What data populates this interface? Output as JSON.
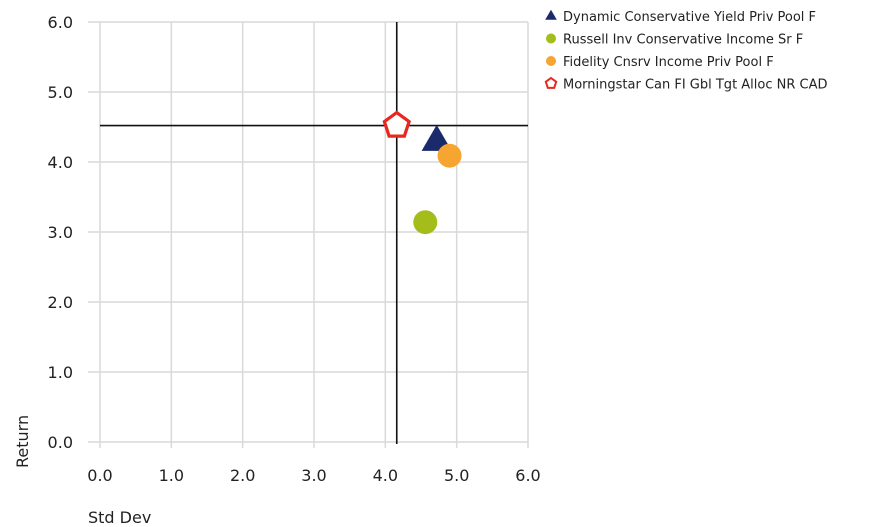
{
  "chart_data": {
    "type": "scatter",
    "xlabel": "Std Dev",
    "ylabel": "Return",
    "xlim": [
      0,
      6
    ],
    "ylim": [
      0,
      6
    ],
    "x_ticks": [
      "0.0",
      "1.0",
      "2.0",
      "3.0",
      "4.0",
      "5.0",
      "6.0"
    ],
    "y_ticks": [
      "0.0",
      "1.0",
      "2.0",
      "3.0",
      "4.0",
      "5.0",
      "6.0"
    ],
    "grid": true,
    "legend_position": "top-right",
    "reference_lines": {
      "x": 4.16,
      "y": 4.52
    },
    "series": [
      {
        "name": "Dynamic Conservative Yield Priv Pool F",
        "x": 4.72,
        "y": 4.3,
        "marker": "triangle",
        "color": "#1b2a6b"
      },
      {
        "name": "Russell Inv Conservative Income Sr F",
        "x": 4.56,
        "y": 3.14,
        "marker": "circle",
        "color": "#a5bd1a"
      },
      {
        "name": "Fidelity Cnsrv Income Priv Pool F",
        "x": 4.9,
        "y": 4.09,
        "marker": "circle",
        "color": "#f6a531"
      },
      {
        "name": "Morningstar Can FI Gbl Tgt Alloc NR CAD",
        "x": 4.16,
        "y": 4.52,
        "marker": "pentagon-outline",
        "color": "#e8281e"
      }
    ]
  }
}
